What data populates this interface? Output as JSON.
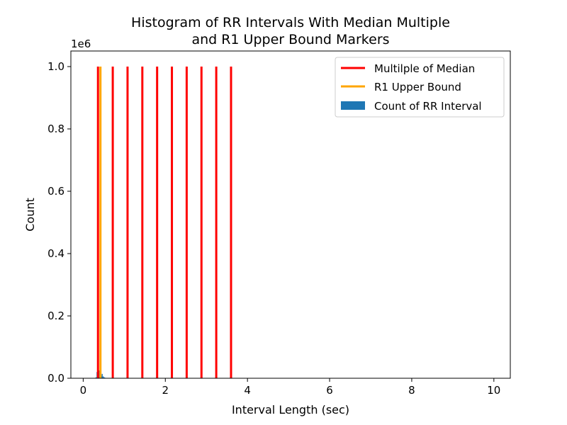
{
  "chart_data": {
    "type": "bar",
    "title_lines": [
      "Histogram of RR Intervals With Median Multiple",
      "and R1 Upper Bound Markers"
    ],
    "xlabel": "Interval Length (sec)",
    "ylabel": "Count",
    "y_offset_label": "1e6",
    "y_scale_factor": 1000000,
    "xlim": [
      -0.3,
      10.4
    ],
    "ylim": [
      0,
      1050000
    ],
    "x_ticks": [
      0,
      2,
      4,
      6,
      8,
      10
    ],
    "x_tick_labels": [
      "0",
      "2",
      "4",
      "6",
      "8",
      "10"
    ],
    "y_ticks": [
      0,
      200000,
      400000,
      600000,
      800000,
      1000000
    ],
    "y_tick_labels": [
      "0.0",
      "0.2",
      "0.4",
      "0.6",
      "0.8",
      "1.0"
    ],
    "histogram": {
      "name": "Count of RR Interval",
      "color": "#1f77b4",
      "bin_width": 0.025,
      "bins": [
        {
          "x": 0.3,
          "count": 3000
        },
        {
          "x": 0.325,
          "count": 20000
        },
        {
          "x": 0.35,
          "count": 118000
        },
        {
          "x": 0.375,
          "count": 25000
        },
        {
          "x": 0.4,
          "count": 12000
        },
        {
          "x": 0.425,
          "count": 8000
        },
        {
          "x": 0.45,
          "count": 14000
        },
        {
          "x": 0.475,
          "count": 6000
        },
        {
          "x": 0.5,
          "count": 3000
        },
        {
          "x": 0.525,
          "count": 1500
        }
      ]
    },
    "median_multiples": {
      "name": "Multilple of Median",
      "color": "#ff0000",
      "x": [
        0.36,
        0.72,
        1.08,
        1.44,
        1.8,
        2.16,
        2.52,
        2.88,
        3.24,
        3.6
      ],
      "height": 1000000
    },
    "r1_upper_bound": {
      "name": "R1 Upper Bound",
      "color": "#ffa500",
      "x": 0.42,
      "height": 1000000
    },
    "legend_position": "top-right",
    "grid": false
  }
}
